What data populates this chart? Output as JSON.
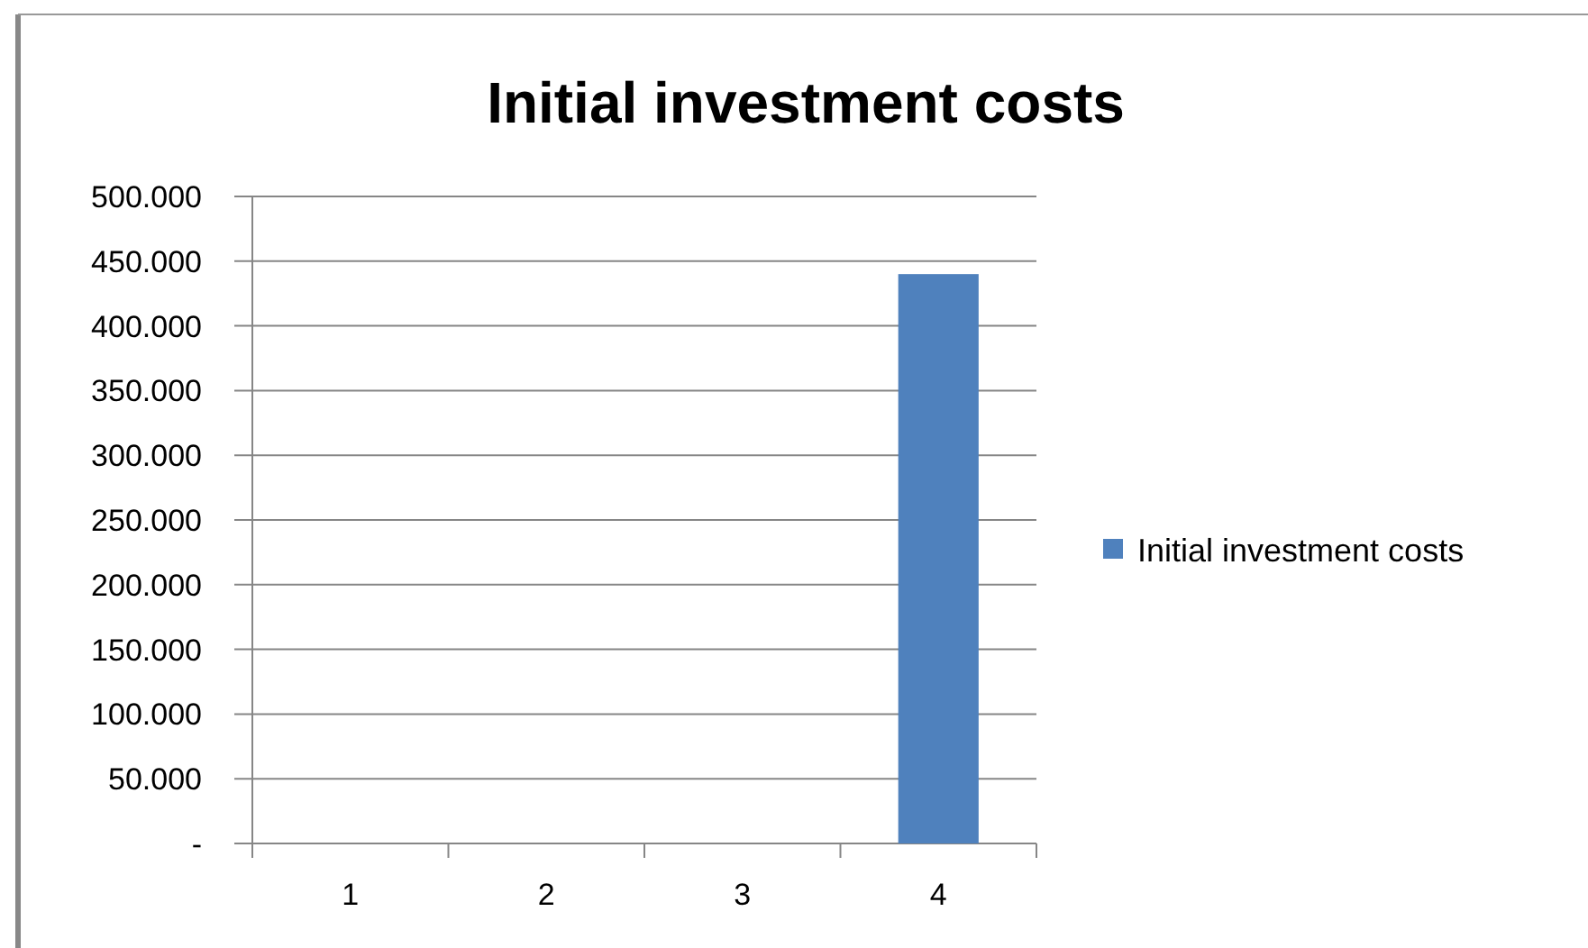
{
  "chart_data": {
    "type": "bar",
    "title": "Initial investment costs",
    "categories": [
      "1",
      "2",
      "3",
      "4"
    ],
    "series": [
      {
        "name": "Initial investment costs",
        "color": "#4f81bd",
        "values": [
          0,
          0,
          0,
          440000
        ]
      }
    ],
    "ylim": [
      0,
      500000
    ],
    "yticks": [
      {
        "value": 0,
        "label": "-"
      },
      {
        "value": 50000,
        "label": "50.000"
      },
      {
        "value": 100000,
        "label": "100.000"
      },
      {
        "value": 150000,
        "label": "150.000"
      },
      {
        "value": 200000,
        "label": "200.000"
      },
      {
        "value": 250000,
        "label": "250.000"
      },
      {
        "value": 300000,
        "label": "300.000"
      },
      {
        "value": 350000,
        "label": "350.000"
      },
      {
        "value": 400000,
        "label": "400.000"
      },
      {
        "value": 450000,
        "label": "450.000"
      },
      {
        "value": 500000,
        "label": "500.000"
      }
    ],
    "grid": "y",
    "legend": "right"
  }
}
